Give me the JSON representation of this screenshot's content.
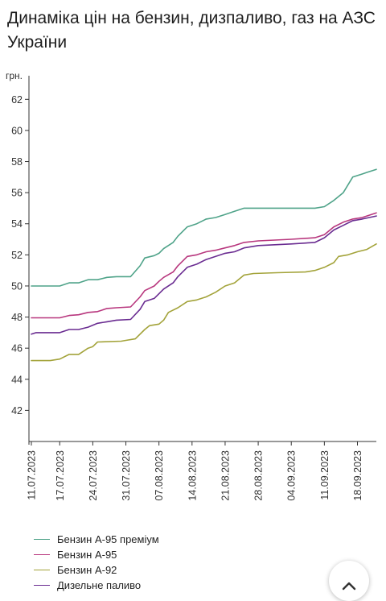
{
  "title": "Динаміка цін на бензин, дизпаливо, газ на АЗС України",
  "scroll_top_icon": "chevron-up-icon",
  "chart_data": {
    "type": "line",
    "title": "Динаміка цін на бензин, дизпаливо, газ на АЗС України",
    "ylabel": "грн.",
    "xlabel": "",
    "ylim": [
      40,
      63
    ],
    "yticks": [
      42,
      44,
      46,
      48,
      50,
      52,
      54,
      56,
      58,
      60,
      62
    ],
    "x_ticks": [
      "11.07.2023",
      "17.07.2023",
      "24.07.2023",
      "31.07.2023",
      "07.08.2023",
      "14.08.2023",
      "21.08.2023",
      "28.08.2023",
      "04.09.2023",
      "11.09.2023",
      "18.09.2023"
    ],
    "x_start": "11.07.2023",
    "x_end": "22.09.2023",
    "grid": false,
    "legend_position": "bottom",
    "series": [
      {
        "name": "Бензин А-95 преміум",
        "color": "#4fa389",
        "points": [
          [
            "11.07.2023",
            50.0
          ],
          [
            "17.07.2023",
            50.0
          ],
          [
            "19.07.2023",
            50.2
          ],
          [
            "21.07.2023",
            50.2
          ],
          [
            "23.07.2023",
            50.4
          ],
          [
            "25.07.2023",
            50.4
          ],
          [
            "27.07.2023",
            50.55
          ],
          [
            "29.07.2023",
            50.6
          ],
          [
            "01.08.2023",
            50.6
          ],
          [
            "03.08.2023",
            51.3
          ],
          [
            "04.08.2023",
            51.8
          ],
          [
            "06.08.2023",
            51.95
          ],
          [
            "07.08.2023",
            52.1
          ],
          [
            "08.08.2023",
            52.4
          ],
          [
            "10.08.2023",
            52.8
          ],
          [
            "11.08.2023",
            53.2
          ],
          [
            "13.08.2023",
            53.8
          ],
          [
            "15.08.2023",
            54.0
          ],
          [
            "17.08.2023",
            54.3
          ],
          [
            "19.08.2023",
            54.4
          ],
          [
            "21.08.2023",
            54.6
          ],
          [
            "23.08.2023",
            54.8
          ],
          [
            "25.08.2023",
            55.0
          ],
          [
            "09.09.2023",
            55.0
          ],
          [
            "11.09.2023",
            55.1
          ],
          [
            "13.09.2023",
            55.5
          ],
          [
            "15.09.2023",
            56.0
          ],
          [
            "17.09.2023",
            57.0
          ],
          [
            "19.09.2023",
            57.2
          ],
          [
            "20.09.2023",
            57.3
          ],
          [
            "22.09.2023",
            57.5
          ]
        ]
      },
      {
        "name": "Бензин А-95",
        "color": "#b8377e",
        "points": [
          [
            "11.07.2023",
            47.95
          ],
          [
            "17.07.2023",
            47.95
          ],
          [
            "19.07.2023",
            48.1
          ],
          [
            "21.07.2023",
            48.15
          ],
          [
            "23.07.2023",
            48.3
          ],
          [
            "25.07.2023",
            48.35
          ],
          [
            "27.07.2023",
            48.55
          ],
          [
            "29.07.2023",
            48.6
          ],
          [
            "01.08.2023",
            48.65
          ],
          [
            "03.08.2023",
            49.3
          ],
          [
            "04.08.2023",
            49.7
          ],
          [
            "06.08.2023",
            50.0
          ],
          [
            "07.08.2023",
            50.3
          ],
          [
            "08.08.2023",
            50.55
          ],
          [
            "10.08.2023",
            50.9
          ],
          [
            "11.08.2023",
            51.3
          ],
          [
            "13.08.2023",
            51.9
          ],
          [
            "15.08.2023",
            52.0
          ],
          [
            "17.08.2023",
            52.2
          ],
          [
            "19.08.2023",
            52.3
          ],
          [
            "21.08.2023",
            52.45
          ],
          [
            "23.08.2023",
            52.6
          ],
          [
            "25.08.2023",
            52.8
          ],
          [
            "28.08.2023",
            52.9
          ],
          [
            "04.09.2023",
            53.0
          ],
          [
            "09.09.2023",
            53.1
          ],
          [
            "11.09.2023",
            53.3
          ],
          [
            "13.09.2023",
            53.8
          ],
          [
            "15.09.2023",
            54.1
          ],
          [
            "17.09.2023",
            54.3
          ],
          [
            "19.09.2023",
            54.4
          ],
          [
            "22.09.2023",
            54.7
          ]
        ]
      },
      {
        "name": "Бензин А-92",
        "color": "#a3a33a",
        "points": [
          [
            "11.07.2023",
            45.2
          ],
          [
            "15.07.2023",
            45.2
          ],
          [
            "17.07.2023",
            45.3
          ],
          [
            "19.07.2023",
            45.6
          ],
          [
            "21.07.2023",
            45.6
          ],
          [
            "23.07.2023",
            46.0
          ],
          [
            "24.07.2023",
            46.1
          ],
          [
            "25.07.2023",
            46.4
          ],
          [
            "30.07.2023",
            46.45
          ],
          [
            "31.07.2023",
            46.5
          ],
          [
            "02.08.2023",
            46.6
          ],
          [
            "04.08.2023",
            47.2
          ],
          [
            "05.08.2023",
            47.45
          ],
          [
            "07.08.2023",
            47.55
          ],
          [
            "08.08.2023",
            47.8
          ],
          [
            "09.08.2023",
            48.3
          ],
          [
            "11.08.2023",
            48.6
          ],
          [
            "13.08.2023",
            49.0
          ],
          [
            "15.08.2023",
            49.1
          ],
          [
            "17.08.2023",
            49.3
          ],
          [
            "19.08.2023",
            49.6
          ],
          [
            "21.08.2023",
            50.0
          ],
          [
            "23.08.2023",
            50.2
          ],
          [
            "25.08.2023",
            50.7
          ],
          [
            "27.08.2023",
            50.8
          ],
          [
            "01.09.2023",
            50.85
          ],
          [
            "07.09.2023",
            50.9
          ],
          [
            "09.09.2023",
            51.0
          ],
          [
            "11.09.2023",
            51.2
          ],
          [
            "13.09.2023",
            51.5
          ],
          [
            "14.09.2023",
            51.9
          ],
          [
            "16.09.2023",
            52.0
          ],
          [
            "18.09.2023",
            52.2
          ],
          [
            "20.09.2023",
            52.35
          ],
          [
            "22.09.2023",
            52.7
          ]
        ]
      },
      {
        "name": "Дизельне паливо",
        "color": "#6a2c91",
        "points": [
          [
            "11.07.2023",
            46.9
          ],
          [
            "12.07.2023",
            47.0
          ],
          [
            "17.07.2023",
            47.0
          ],
          [
            "19.07.2023",
            47.2
          ],
          [
            "21.07.2023",
            47.2
          ],
          [
            "23.07.2023",
            47.35
          ],
          [
            "25.07.2023",
            47.6
          ],
          [
            "27.07.2023",
            47.7
          ],
          [
            "29.07.2023",
            47.8
          ],
          [
            "01.08.2023",
            47.85
          ],
          [
            "03.08.2023",
            48.5
          ],
          [
            "04.08.2023",
            49.0
          ],
          [
            "06.08.2023",
            49.2
          ],
          [
            "07.08.2023",
            49.5
          ],
          [
            "08.08.2023",
            49.8
          ],
          [
            "10.08.2023",
            50.2
          ],
          [
            "11.08.2023",
            50.6
          ],
          [
            "13.08.2023",
            51.2
          ],
          [
            "15.08.2023",
            51.4
          ],
          [
            "17.08.2023",
            51.7
          ],
          [
            "19.08.2023",
            51.9
          ],
          [
            "21.08.2023",
            52.1
          ],
          [
            "23.08.2023",
            52.2
          ],
          [
            "25.08.2023",
            52.45
          ],
          [
            "28.08.2023",
            52.6
          ],
          [
            "04.09.2023",
            52.7
          ],
          [
            "09.09.2023",
            52.8
          ],
          [
            "11.09.2023",
            53.1
          ],
          [
            "13.09.2023",
            53.6
          ],
          [
            "15.09.2023",
            53.9
          ],
          [
            "17.09.2023",
            54.2
          ],
          [
            "19.09.2023",
            54.3
          ],
          [
            "22.09.2023",
            54.5
          ]
        ]
      }
    ]
  }
}
